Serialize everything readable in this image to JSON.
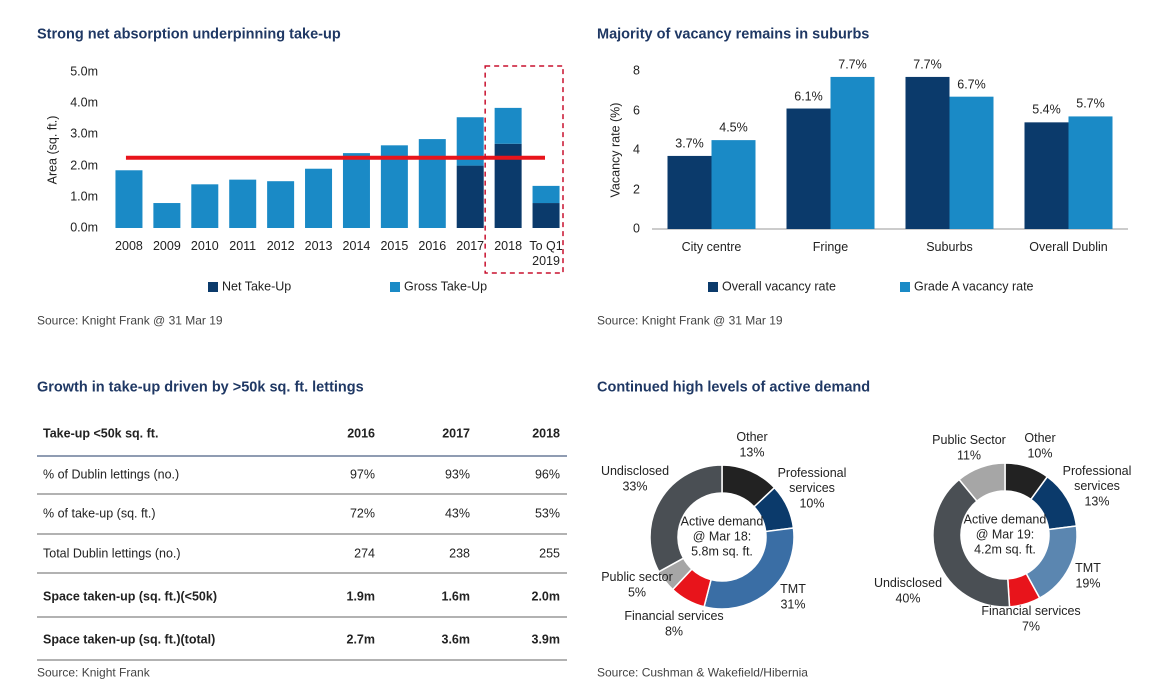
{
  "chart_data": [
    {
      "type": "bar",
      "stacked": true,
      "title": "Strong net absorption underpinning take-up",
      "ylabel": "Area (sq. ft.)",
      "categories": [
        "2008",
        "2009",
        "2010",
        "2011",
        "2012",
        "2013",
        "2014",
        "2015",
        "2016",
        "2017",
        "2018",
        "To Q1 2019"
      ],
      "series": [
        {
          "name": "Net Take-Up",
          "color": "#0b3a6b",
          "values": [
            null,
            null,
            null,
            null,
            null,
            null,
            null,
            null,
            null,
            2.0,
            2.7,
            0.8
          ]
        },
        {
          "name": "Gross Take-Up",
          "color": "#1a8ac6",
          "values": [
            1.85,
            0.8,
            1.4,
            1.55,
            1.5,
            1.9,
            2.4,
            2.65,
            2.85,
            1.55,
            1.15,
            0.55
          ]
        }
      ],
      "ylim": [
        0,
        5
      ],
      "yticks": [
        {
          "value": 0,
          "label": "0.0m"
        },
        {
          "value": 1,
          "label": "1.0m"
        },
        {
          "value": 2,
          "label": "2.0m"
        },
        {
          "value": 3,
          "label": "3.0m"
        },
        {
          "value": 4,
          "label": "4.0m"
        },
        {
          "value": 5,
          "label": "5.0m"
        }
      ],
      "reference_line": {
        "value": 2.25,
        "color": "#e8141b"
      },
      "legend": "bottom",
      "source": "Source: Knight Frank @ 31 Mar 19"
    },
    {
      "type": "bar",
      "stacked": false,
      "title": "Majority of vacancy remains in suburbs",
      "ylabel": "Vacancy rate (%)",
      "categories": [
        "City centre",
        "Fringe",
        "Suburbs",
        "Overall Dublin"
      ],
      "series": [
        {
          "name": "Overall vacancy rate",
          "color": "#0b3a6b",
          "values": [
            3.7,
            6.1,
            7.7,
            5.4
          ],
          "value_labels": [
            "3.7%",
            "6.1%",
            "7.7%",
            "5.4%"
          ]
        },
        {
          "name": "Grade A vacancy rate",
          "color": "#1a8ac6",
          "values": [
            4.5,
            7.7,
            6.7,
            5.7
          ],
          "value_labels": [
            "4.5%",
            "7.7%",
            "6.7%",
            "5.7%"
          ]
        }
      ],
      "ylim": [
        0,
        8
      ],
      "yticks": [
        0,
        2,
        4,
        6,
        8
      ],
      "legend": "bottom",
      "source": "Source: Knight Frank @ 31 Mar 19"
    },
    {
      "type": "pie",
      "donut": true,
      "title": "Continued high levels of active demand",
      "center_label": "Active demand @ Mar 18: 5.8m sq. ft.",
      "labels": [
        "Other",
        "Professional services",
        "TMT",
        "Financial services",
        "Public sector",
        "Undisclosed"
      ],
      "values": [
        13,
        10,
        31,
        8,
        5,
        33
      ],
      "value_labels": [
        "13%",
        "10%",
        "31%",
        "8%",
        "5%",
        "33%"
      ],
      "colors": [
        "#222222",
        "#0b3a6b",
        "#3a6ea5",
        "#e8141b",
        "#a6a6a6",
        "#4a4f54"
      ],
      "source": "Source: Cushman & Wakefield/Hibernia"
    },
    {
      "type": "pie",
      "donut": true,
      "center_label": "Active demand @ Mar 19: 4.2m sq. ft.",
      "labels": [
        "Other",
        "Professional services",
        "TMT",
        "Financial services",
        "Undisclosed",
        "Public Sector"
      ],
      "values": [
        10,
        13,
        19,
        7,
        40,
        11
      ],
      "value_labels": [
        "10%",
        "13%",
        "19%",
        "7%",
        "40%",
        "11%"
      ],
      "colors": [
        "#222222",
        "#0b3a6b",
        "#5b86b0",
        "#e8141b",
        "#4a4f54",
        "#a6a6a6"
      ]
    }
  ],
  "table": {
    "title": "Growth in take-up driven by >50k sq. ft. lettings",
    "header": [
      "Take-up <50k sq. ft.",
      "2016",
      "2017",
      "2018"
    ],
    "rows": [
      [
        "% of Dublin lettings (no.)",
        "97%",
        "93%",
        "96%"
      ],
      [
        "% of take-up (sq. ft.)",
        "72%",
        "43%",
        "53%"
      ],
      [
        "Total Dublin lettings (no.)",
        "274",
        "238",
        "255"
      ],
      [
        "Space taken-up (sq. ft.)(<50k)",
        "1.9m",
        "1.6m",
        "2.0m"
      ],
      [
        "Space taken-up (sq. ft.)(total)",
        "2.7m",
        "3.6m",
        "3.9m"
      ]
    ],
    "source": "Source: Knight Frank"
  }
}
